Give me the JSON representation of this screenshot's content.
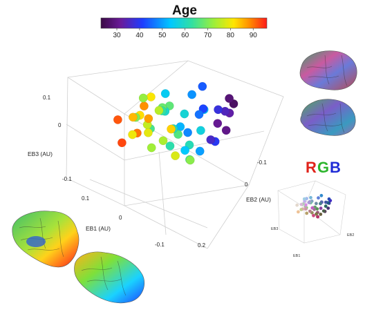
{
  "colorbar": {
    "title": "Age",
    "ticks": [
      "30",
      "40",
      "50",
      "60",
      "70",
      "80",
      "90"
    ],
    "tick_values": [
      30,
      40,
      50,
      60,
      70,
      80,
      90
    ],
    "range": [
      23,
      96
    ]
  },
  "main_axes": {
    "eb1_label": "EB1 (AU)",
    "eb2_label": "EB2 (AU)",
    "eb3_label": "EB3 (AU)",
    "eb1_ticks": [
      "0.1",
      "0",
      "-0.1",
      "0.2"
    ],
    "eb2_ticks": [
      "0",
      "-0.1"
    ],
    "eb3_ticks": [
      "0.1",
      "0",
      "-0.1"
    ]
  },
  "rgb_panel": {
    "title_r": "R",
    "title_g": "G",
    "title_b": "B",
    "eb1_label": "EB1",
    "eb2_label": "EB2",
    "eb3_label": "EB3"
  },
  "colors": {
    "red": "#e0231b",
    "green": "#2db52d",
    "blue": "#1f2bd6",
    "axis": "#c8c8c8",
    "text": "#222222"
  },
  "chart_data": {
    "type": "scatter",
    "title": "",
    "color_variable": "Age",
    "color_range": [
      23,
      96
    ],
    "x_label": "EB1 (AU)",
    "y_label": "EB2 (AU)",
    "z_label": "EB3 (AU)",
    "points": [
      {
        "eb1": 0.08,
        "eb2": 0.05,
        "eb3": 0.08,
        "age": 85
      },
      {
        "eb1": 0.06,
        "eb2": 0.04,
        "eb3": 0.1,
        "age": 88
      },
      {
        "eb1": 0.05,
        "eb2": 0.06,
        "eb3": 0.06,
        "age": 82
      },
      {
        "eb1": 0.09,
        "eb2": 0.03,
        "eb3": 0.05,
        "age": 90
      },
      {
        "eb1": 0.07,
        "eb2": 0.02,
        "eb3": 0.04,
        "age": 79
      },
      {
        "eb1": 0.04,
        "eb2": 0.05,
        "eb3": 0.03,
        "age": 76
      },
      {
        "eb1": 0.03,
        "eb2": 0.07,
        "eb3": 0.09,
        "age": 72
      },
      {
        "eb1": 0.1,
        "eb2": 0.06,
        "eb3": 0.02,
        "age": 93
      },
      {
        "eb1": 0.02,
        "eb2": 0.03,
        "eb3": 0.07,
        "age": 68
      },
      {
        "eb1": 0.05,
        "eb2": 0.0,
        "eb3": 0.01,
        "age": 74
      },
      {
        "eb1": 0.01,
        "eb2": 0.04,
        "eb3": 0.05,
        "age": 63
      },
      {
        "eb1": 0.0,
        "eb2": 0.02,
        "eb3": 0.0,
        "age": 60
      },
      {
        "eb1": 0.03,
        "eb2": -0.02,
        "eb3": 0.02,
        "age": 66
      },
      {
        "eb1": -0.02,
        "eb2": 0.01,
        "eb3": 0.03,
        "age": 58
      },
      {
        "eb1": 0.06,
        "eb2": -0.03,
        "eb3": 0.06,
        "age": 83
      },
      {
        "eb1": -0.01,
        "eb2": 0.05,
        "eb3": 0.08,
        "age": 55
      },
      {
        "eb1": 0.04,
        "eb2": 0.08,
        "eb3": 0.04,
        "age": 70
      },
      {
        "eb1": -0.03,
        "eb2": 0.03,
        "eb3": -0.02,
        "age": 52
      },
      {
        "eb1": 0.02,
        "eb2": -0.04,
        "eb3": -0.01,
        "age": 61
      },
      {
        "eb1": -0.05,
        "eb2": 0.0,
        "eb3": 0.01,
        "age": 46
      },
      {
        "eb1": -0.04,
        "eb2": -0.02,
        "eb3": 0.04,
        "age": 42
      },
      {
        "eb1": -0.06,
        "eb2": -0.04,
        "eb3": 0.03,
        "age": 38
      },
      {
        "eb1": -0.07,
        "eb2": -0.06,
        "eb3": 0.02,
        "age": 33
      },
      {
        "eb1": -0.05,
        "eb2": -0.07,
        "eb3": -0.01,
        "age": 30
      },
      {
        "eb1": -0.08,
        "eb2": -0.05,
        "eb3": 0.05,
        "age": 28
      },
      {
        "eb1": -0.06,
        "eb2": -0.08,
        "eb3": 0.06,
        "age": 26
      },
      {
        "eb1": -0.03,
        "eb2": -0.06,
        "eb3": -0.03,
        "age": 40
      },
      {
        "eb1": -0.09,
        "eb2": -0.03,
        "eb3": 0.0,
        "age": 35
      },
      {
        "eb1": 0.01,
        "eb2": -0.06,
        "eb3": 0.03,
        "age": 57
      },
      {
        "eb1": 0.03,
        "eb2": -0.05,
        "eb3": -0.04,
        "age": 64
      },
      {
        "eb1": 0.05,
        "eb2": -0.07,
        "eb3": -0.02,
        "age": 71
      },
      {
        "eb1": -0.02,
        "eb2": -0.03,
        "eb3": -0.06,
        "age": 50
      },
      {
        "eb1": 0.0,
        "eb2": -0.01,
        "eb3": -0.05,
        "age": 54
      },
      {
        "eb1": 0.07,
        "eb2": -0.05,
        "eb3": 0.0,
        "age": 78
      },
      {
        "eb1": -0.04,
        "eb2": 0.02,
        "eb3": -0.04,
        "age": 48
      },
      {
        "eb1": 0.02,
        "eb2": 0.01,
        "eb3": -0.03,
        "age": 62
      },
      {
        "eb1": -0.01,
        "eb2": -0.05,
        "eb3": 0.07,
        "age": 53
      },
      {
        "eb1": 0.04,
        "eb2": 0.02,
        "eb3": 0.08,
        "age": 75
      },
      {
        "eb1": -0.07,
        "eb2": 0.01,
        "eb3": 0.07,
        "age": 44
      },
      {
        "eb1": 0.08,
        "eb2": 0.01,
        "eb3": 0.09,
        "age": 87
      },
      {
        "eb1": 0.06,
        "eb2": 0.07,
        "eb3": 0.01,
        "age": 80
      },
      {
        "eb1": 0.09,
        "eb2": 0.08,
        "eb3": 0.07,
        "age": 92
      },
      {
        "eb1": -0.02,
        "eb2": 0.06,
        "eb3": 0.02,
        "age": 59
      },
      {
        "eb1": 0.01,
        "eb2": 0.07,
        "eb3": -0.01,
        "age": 65
      },
      {
        "eb1": -0.05,
        "eb2": -0.03,
        "eb3": -0.05,
        "age": 36
      },
      {
        "eb1": 0.0,
        "eb2": 0.03,
        "eb3": 0.06,
        "age": 67
      },
      {
        "eb1": 0.05,
        "eb2": 0.03,
        "eb3": -0.02,
        "age": 73
      },
      {
        "eb1": -0.03,
        "eb2": 0.0,
        "eb3": 0.08,
        "age": 49
      },
      {
        "eb1": 0.03,
        "eb2": 0.05,
        "eb3": 0.1,
        "age": 81
      },
      {
        "eb1": -0.08,
        "eb2": -0.02,
        "eb3": -0.03,
        "age": 31
      }
    ]
  }
}
